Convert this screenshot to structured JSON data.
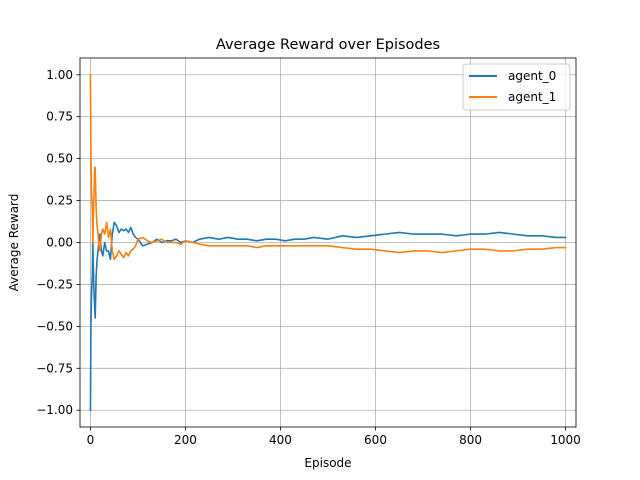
{
  "chart_data": {
    "type": "line",
    "title": "Average Reward over Episodes",
    "xlabel": "Episode",
    "ylabel": "Average Reward",
    "xlim": [
      -22,
      1022
    ],
    "ylim": [
      -1.1,
      1.1
    ],
    "xticks": [
      0,
      200,
      400,
      600,
      800,
      1000
    ],
    "yticks": [
      -1.0,
      -0.75,
      -0.5,
      -0.25,
      0.0,
      0.25,
      0.5,
      0.75,
      1.0
    ],
    "xtick_labels": [
      "0",
      "200",
      "400",
      "600",
      "800",
      "1000"
    ],
    "ytick_labels": [
      "−1.00",
      "−0.75",
      "−0.50",
      "−0.25",
      "0.00",
      "0.25",
      "0.50",
      "0.75",
      "1.00"
    ],
    "grid": true,
    "legend_position": "top-right",
    "series": [
      {
        "name": "agent_0",
        "color": "#1f77b4",
        "x": [
          0,
          1,
          2,
          3,
          4,
          5,
          6,
          7,
          8,
          9,
          10,
          12,
          14,
          16,
          18,
          20,
          23,
          26,
          30,
          34,
          38,
          42,
          46,
          50,
          55,
          60,
          65,
          70,
          75,
          80,
          85,
          90,
          95,
          100,
          110,
          120,
          130,
          140,
          150,
          160,
          170,
          180,
          190,
          200,
          215,
          230,
          250,
          270,
          290,
          310,
          330,
          350,
          370,
          390,
          410,
          430,
          450,
          470,
          500,
          530,
          560,
          590,
          620,
          650,
          680,
          710,
          740,
          770,
          800,
          830,
          860,
          890,
          920,
          950,
          980,
          1000
        ],
        "y": [
          -1.0,
          -0.5,
          -0.33,
          -0.25,
          -0.2,
          0.0,
          -0.14,
          -0.25,
          -0.33,
          -0.4,
          -0.45,
          -0.2,
          -0.1,
          -0.05,
          0.02,
          0.05,
          -0.05,
          -0.08,
          0.0,
          -0.05,
          -0.05,
          -0.1,
          0.05,
          0.12,
          0.1,
          0.06,
          0.08,
          0.07,
          0.08,
          0.06,
          0.09,
          0.05,
          0.03,
          0.02,
          -0.02,
          -0.01,
          0.0,
          0.02,
          0.0,
          0.01,
          0.01,
          0.02,
          0.0,
          0.01,
          0.0,
          0.02,
          0.03,
          0.02,
          0.03,
          0.02,
          0.02,
          0.01,
          0.02,
          0.02,
          0.01,
          0.02,
          0.02,
          0.03,
          0.02,
          0.04,
          0.03,
          0.04,
          0.05,
          0.06,
          0.05,
          0.05,
          0.05,
          0.04,
          0.05,
          0.05,
          0.06,
          0.05,
          0.04,
          0.04,
          0.03,
          0.03
        ]
      },
      {
        "name": "agent_1",
        "color": "#ff7f0e",
        "x": [
          0,
          1,
          2,
          3,
          4,
          5,
          6,
          7,
          8,
          9,
          10,
          12,
          14,
          16,
          18,
          20,
          23,
          26,
          30,
          34,
          38,
          42,
          46,
          50,
          55,
          60,
          65,
          70,
          75,
          80,
          85,
          90,
          95,
          100,
          110,
          120,
          130,
          140,
          150,
          160,
          170,
          180,
          190,
          200,
          215,
          230,
          250,
          270,
          290,
          310,
          330,
          350,
          370,
          390,
          410,
          430,
          450,
          470,
          500,
          530,
          560,
          590,
          620,
          650,
          680,
          710,
          740,
          770,
          800,
          830,
          860,
          890,
          920,
          950,
          980,
          1000
        ],
        "y": [
          1.0,
          0.5,
          0.33,
          0.25,
          0.2,
          0.0,
          0.14,
          0.25,
          0.33,
          0.45,
          0.44,
          0.2,
          0.1,
          0.05,
          -0.02,
          -0.05,
          0.05,
          0.08,
          0.05,
          0.12,
          0.03,
          0.08,
          -0.05,
          -0.1,
          -0.08,
          -0.05,
          -0.07,
          -0.09,
          -0.06,
          -0.08,
          -0.05,
          -0.04,
          -0.02,
          0.02,
          0.03,
          0.01,
          0.0,
          0.01,
          0.02,
          0.0,
          0.0,
          0.0,
          -0.01,
          0.01,
          0.0,
          -0.01,
          -0.02,
          -0.02,
          -0.02,
          -0.02,
          -0.02,
          -0.03,
          -0.02,
          -0.02,
          -0.02,
          -0.02,
          -0.02,
          -0.02,
          -0.02,
          -0.03,
          -0.04,
          -0.04,
          -0.05,
          -0.06,
          -0.05,
          -0.05,
          -0.06,
          -0.05,
          -0.04,
          -0.04,
          -0.05,
          -0.05,
          -0.04,
          -0.04,
          -0.03,
          -0.03
        ]
      }
    ]
  }
}
